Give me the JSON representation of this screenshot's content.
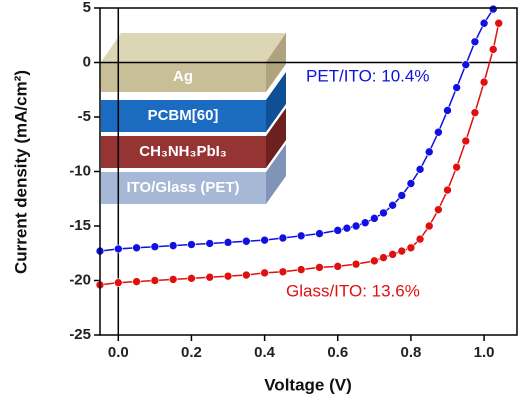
{
  "chart_data": {
    "type": "scatter",
    "x_label": "Voltage (V)",
    "y_label": "Current density (mA/cm²)",
    "xlim": [
      -0.05,
      1.09
    ],
    "ylim": [
      -25,
      5
    ],
    "xticks": [
      {
        "value": 0,
        "label": "0.0"
      },
      0.2,
      0.4,
      0.6,
      0.8,
      {
        "value": 1,
        "label": "1.0"
      }
    ],
    "yticks": [
      5,
      0,
      -5,
      -10,
      -15,
      -20,
      -25
    ],
    "series": [
      {
        "name": "PET/ITO: 10.4%",
        "color": "#1010e0",
        "x": [
          -0.05,
          0,
          0.05,
          0.1,
          0.15,
          0.2,
          0.25,
          0.3,
          0.35,
          0.4,
          0.45,
          0.5,
          0.55,
          0.6,
          0.625,
          0.65,
          0.675,
          0.7,
          0.725,
          0.75,
          0.775,
          0.8,
          0.825,
          0.85,
          0.875,
          0.9,
          0.925,
          0.95,
          0.975,
          1.0,
          1.025
        ],
        "values": [
          -17.3,
          -17.1,
          -17.0,
          -16.9,
          -16.8,
          -16.7,
          -16.6,
          -16.5,
          -16.4,
          -16.3,
          -16.1,
          -15.9,
          -15.7,
          -15.4,
          -15.2,
          -15.0,
          -14.7,
          -14.3,
          -13.8,
          -13.1,
          -12.2,
          -11.1,
          -9.8,
          -8.2,
          -6.4,
          -4.4,
          -2.3,
          -0.2,
          1.9,
          3.6,
          4.9
        ]
      },
      {
        "name": "Glass/ITO: 13.6%",
        "color": "#e01010",
        "x": [
          -0.05,
          0,
          0.05,
          0.1,
          0.15,
          0.2,
          0.25,
          0.3,
          0.35,
          0.4,
          0.45,
          0.5,
          0.55,
          0.6,
          0.65,
          0.7,
          0.725,
          0.75,
          0.775,
          0.8,
          0.825,
          0.85,
          0.875,
          0.9,
          0.925,
          0.95,
          0.975,
          1.0,
          1.025,
          1.04
        ],
        "values": [
          -20.4,
          -20.2,
          -20.1,
          -20.0,
          -19.9,
          -19.8,
          -19.7,
          -19.6,
          -19.5,
          -19.3,
          -19.2,
          -19.0,
          -18.8,
          -18.7,
          -18.5,
          -18.2,
          -17.9,
          -17.6,
          -17.3,
          -17.0,
          -16.2,
          -15.0,
          -13.5,
          -11.7,
          -9.6,
          -7.2,
          -4.6,
          -1.8,
          1.2,
          3.6
        ]
      }
    ],
    "inset": {
      "layers": [
        "Ag",
        "PCBM[60]",
        "CH₃NH₃PbI₃",
        "ITO/Glass (PET)"
      ]
    }
  }
}
